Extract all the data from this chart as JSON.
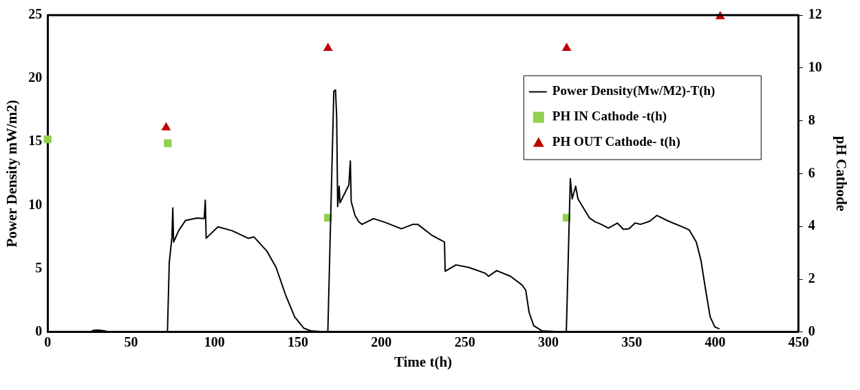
{
  "chart_data": {
    "type": "line",
    "xlabel": "Time t(h)",
    "ylabel": "Power Density mW/m2)",
    "y2label": "pH Cathode",
    "xlim": [
      0,
      450
    ],
    "xticks": [
      0,
      50,
      100,
      150,
      200,
      250,
      300,
      350,
      400,
      450
    ],
    "ylim": [
      0,
      25
    ],
    "yticks": [
      0,
      5,
      10,
      15,
      20,
      25
    ],
    "y2lim": [
      0,
      12
    ],
    "y2ticks": [
      0,
      2,
      4,
      6,
      8,
      10,
      12
    ],
    "grid": false,
    "legend": "right",
    "series": [
      {
        "name": "Power Density(Mw/M2)-T(h)",
        "color": "#000000",
        "marker": "none",
        "line_style": "solid",
        "x": [
          0,
          25,
          28,
          31,
          34,
          37,
          71.8,
          72.9,
          74.5,
          75,
          75.5,
          78.5,
          82.6,
          89.6,
          93.8,
          94.5,
          95,
          102.1,
          110.5,
          120.2,
          123.7,
          131.3,
          136.9,
          142.4,
          148,
          153.6,
          157.8,
          167.9,
          171.5,
          172.5,
          173.2,
          173.8,
          174.7,
          175.2,
          180.5,
          181.4,
          181.9,
          184.2,
          186.5,
          188.4,
          195.3,
          202.3,
          212,
          218.9,
          221.8,
          230.1,
          237.8,
          238.2,
          244.7,
          252.3,
          262.1,
          264.2,
          269,
          277.4,
          284.4,
          286.5,
          288.5,
          291.3,
          296.2,
          310.8,
          313.2,
          314.3,
          316.4,
          317.8,
          321.9,
          324.7,
          328,
          331.7,
          336,
          341.4,
          345,
          348.4,
          352,
          355.3,
          360.9,
          365,
          372,
          380.4,
          384.5,
          388.7,
          391.5,
          394.3,
          397,
          399.8,
          402.6
        ],
        "values": [
          0,
          0,
          0.15,
          0.15,
          0.1,
          0,
          0,
          5.5,
          7.5,
          9.8,
          7.1,
          8.0,
          8.8,
          9.0,
          8.95,
          10.4,
          7.4,
          8.3,
          8.0,
          7.4,
          7.5,
          6.4,
          5.1,
          3.0,
          1.2,
          0.3,
          0.1,
          0,
          19.0,
          19.1,
          17,
          9.9,
          11.5,
          10.2,
          11.6,
          13.5,
          10.3,
          9.2,
          8.7,
          8.5,
          8.95,
          8.65,
          8.15,
          8.5,
          8.5,
          7.65,
          7.1,
          4.8,
          5.3,
          5.1,
          4.65,
          4.4,
          4.85,
          4.4,
          3.7,
          3.3,
          1.55,
          0.5,
          0.1,
          0,
          12.1,
          10.5,
          11.5,
          10.5,
          9.6,
          9.0,
          8.7,
          8.5,
          8.2,
          8.6,
          8.1,
          8.15,
          8.6,
          8.5,
          8.75,
          9.2,
          8.75,
          8.3,
          8.05,
          7.1,
          5.65,
          3.3,
          1.2,
          0.4,
          0.25
        ]
      },
      {
        "name": "PH IN Cathode -t(h)",
        "type": "scatter",
        "axis": "y2",
        "color": "#92d050",
        "marker": "square",
        "x": [
          0,
          72,
          168,
          311
        ],
        "values": [
          7.3,
          7.15,
          4.33,
          4.33
        ]
      },
      {
        "name": "PH OUT Cathode- t(h)",
        "type": "scatter",
        "axis": "y2",
        "color": "#c00000",
        "marker": "triangle",
        "x": [
          71,
          168,
          311,
          403
        ],
        "values": [
          7.74,
          10.75,
          10.75,
          11.95
        ]
      }
    ]
  }
}
